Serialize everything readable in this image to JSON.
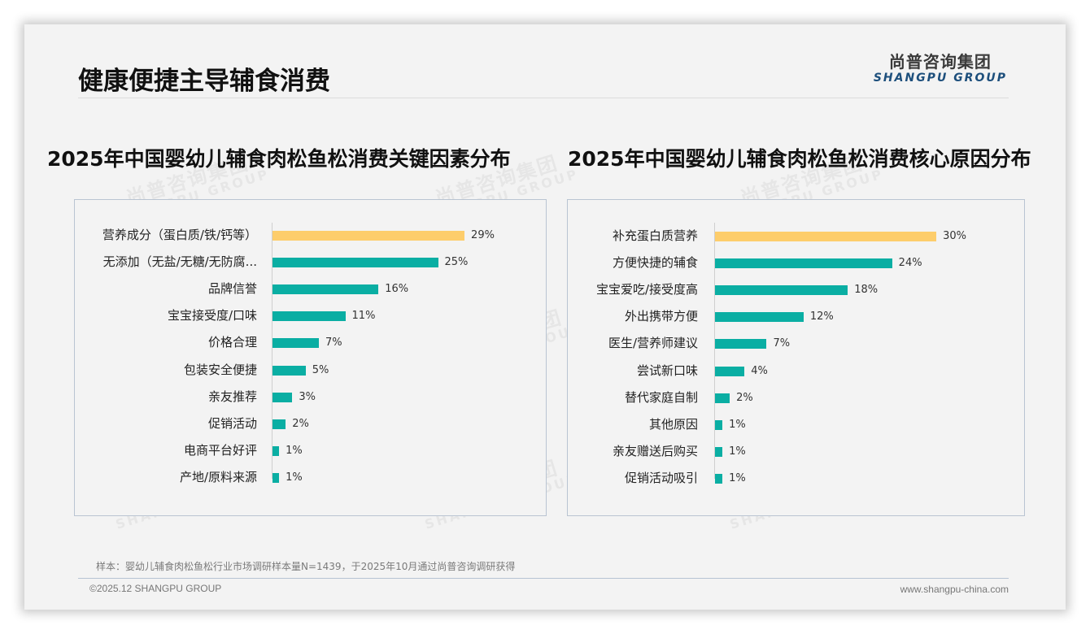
{
  "header": {
    "title": "健康便捷主导辅食消费",
    "logo_cn": "尚普咨询集团",
    "logo_en": "SHANGPU GROUP"
  },
  "watermark": {
    "cn": "尚普咨询集团",
    "en": "SHANGPU GROUP"
  },
  "charts": {
    "left": {
      "title": "2025年中国婴幼儿辅食肉松鱼松消费关键因素分布"
    },
    "right": {
      "title": "2025年中国婴幼儿辅食肉松鱼松消费核心原因分布"
    }
  },
  "colors": {
    "highlight": "#fdcd6b",
    "bar": "#0aaea3",
    "panel_border": "#b9c4d2",
    "logo_en": "#1d4f7c"
  },
  "chart_data": [
    {
      "type": "bar",
      "orientation": "horizontal",
      "title": "2025年中国婴幼儿辅食肉松鱼松消费关键因素分布",
      "categories": [
        "营养成分（蛋白质/铁/钙等）",
        "无添加（无盐/无糖/无防腐...",
        "品牌信誉",
        "宝宝接受度/口味",
        "价格合理",
        "包装安全便捷",
        "亲友推荐",
        "促销活动",
        "电商平台好评",
        "产地/原料来源"
      ],
      "values": [
        29,
        25,
        16,
        11,
        7,
        5,
        3,
        2,
        1,
        1
      ],
      "labels": [
        "29%",
        "25%",
        "16%",
        "11%",
        "7%",
        "5%",
        "3%",
        "2%",
        "1%",
        "1%"
      ],
      "unit": "%",
      "highlight_index": 0,
      "xlabel": "",
      "ylabel": "",
      "grid": false,
      "legend": null
    },
    {
      "type": "bar",
      "orientation": "horizontal",
      "title": "2025年中国婴幼儿辅食肉松鱼松消费核心原因分布",
      "categories": [
        "补充蛋白质营养",
        "方便快捷的辅食",
        "宝宝爱吃/接受度高",
        "外出携带方便",
        "医生/营养师建议",
        "尝试新口味",
        "替代家庭自制",
        "其他原因",
        "亲友赠送后购买",
        "促销活动吸引"
      ],
      "values": [
        30,
        24,
        18,
        12,
        7,
        4,
        2,
        1,
        1,
        1
      ],
      "labels": [
        "30%",
        "24%",
        "18%",
        "12%",
        "7%",
        "4%",
        "2%",
        "1%",
        "1%",
        "1%"
      ],
      "unit": "%",
      "highlight_index": 0,
      "xlabel": "",
      "ylabel": "",
      "grid": false,
      "legend": null
    }
  ],
  "footer": {
    "note": "样本：婴幼儿辅食肉松鱼松行业市场调研样本量N=1439，于2025年10月通过尚普咨询调研获得",
    "copyright": "©2025.12 SHANGPU GROUP",
    "website": "www.shangpu-china.com"
  }
}
